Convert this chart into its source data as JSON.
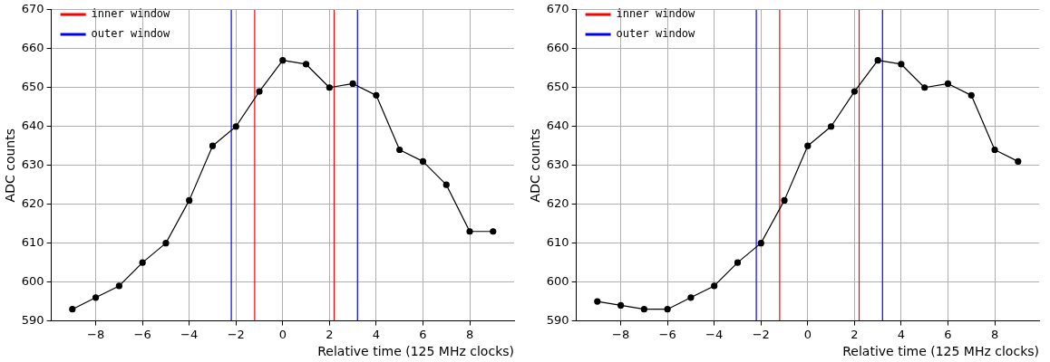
{
  "chart_data": [
    {
      "type": "line",
      "xlabel": "Relative time (125 MHz clocks)",
      "ylabel": "ADC counts",
      "x": [
        -9,
        -8,
        -7,
        -6,
        -5,
        -4,
        -3,
        -2,
        -1,
        0,
        1,
        2,
        3,
        4,
        5,
        6,
        7,
        8,
        9
      ],
      "series": [
        {
          "color": "#000000",
          "values": [
            593,
            596,
            599,
            605,
            610,
            621,
            635,
            640,
            649,
            657,
            656,
            650,
            651,
            648,
            634,
            631,
            625,
            613,
            613
          ]
        },
        {
          "name": "inner window",
          "color": "#ff0000",
          "marker": "none",
          "x": [
            -1.2,
            -1.2
          ],
          "values": [
            590,
            670
          ]
        },
        {
          "color": "#ff0000",
          "marker": "none",
          "x": [
            2.2,
            2.2
          ],
          "values": [
            590,
            670
          ]
        },
        {
          "name": "outer window",
          "color": "#0000ff",
          "marker": "none",
          "x": [
            -2.2,
            -2.2
          ],
          "values": [
            590,
            670
          ]
        },
        {
          "color": "#0000ff",
          "marker": "none",
          "x": [
            3.2,
            3.2
          ],
          "values": [
            590,
            670
          ]
        }
      ],
      "xlim": [
        -9.9,
        9.9
      ],
      "xticks": [
        {
          "value": -8,
          "label": "−8"
        },
        {
          "value": -6,
          "label": "−6"
        },
        {
          "value": -4,
          "label": "−4"
        },
        {
          "value": -2,
          "label": "−2"
        },
        0,
        2,
        4,
        6,
        8
      ],
      "ylim": [
        590,
        670
      ],
      "yticks": [
        590,
        600,
        610,
        620,
        630,
        640,
        650,
        660,
        670
      ],
      "grid": true,
      "legend": "top left",
      "marker": "circle",
      "line_style": "solid"
    },
    {
      "type": "line",
      "xlabel": "Relative time (125 MHz clocks)",
      "ylabel": "ADC counts",
      "x": [
        -9,
        -8,
        -7,
        -6,
        -5,
        -4,
        -3,
        -2,
        -1,
        0,
        1,
        2,
        3,
        4,
        5,
        6,
        7,
        8,
        9
      ],
      "series": [
        {
          "color": "#000000",
          "values": [
            595,
            594,
            593,
            593,
            596,
            599,
            605,
            610,
            621,
            635,
            640,
            649,
            657,
            656,
            650,
            651,
            648,
            634,
            631
          ]
        },
        {
          "name": "inner window",
          "color": "#ff0000",
          "marker": "none",
          "x": [
            -1.2,
            -1.2
          ],
          "values": [
            590,
            670
          ]
        },
        {
          "color": "#ff0000",
          "marker": "none",
          "x": [
            2.2,
            2.2
          ],
          "values": [
            590,
            670
          ]
        },
        {
          "name": "outer window",
          "color": "#0000ff",
          "marker": "none",
          "x": [
            -2.2,
            -2.2
          ],
          "values": [
            590,
            670
          ]
        },
        {
          "color": "#0000ff",
          "marker": "none",
          "x": [
            3.2,
            3.2
          ],
          "values": [
            590,
            670
          ]
        }
      ],
      "xlim": [
        -9.9,
        9.9
      ],
      "xticks": [
        {
          "value": -8,
          "label": "−8"
        },
        {
          "value": -6,
          "label": "−6"
        },
        {
          "value": -4,
          "label": "−4"
        },
        {
          "value": -2,
          "label": "−2"
        },
        0,
        2,
        4,
        6,
        8
      ],
      "ylim": [
        590,
        670
      ],
      "yticks": [
        590,
        600,
        610,
        620,
        630,
        640,
        650,
        660,
        670
      ],
      "grid": true,
      "legend": "top left",
      "marker": "circle",
      "line_style": "solid"
    }
  ]
}
